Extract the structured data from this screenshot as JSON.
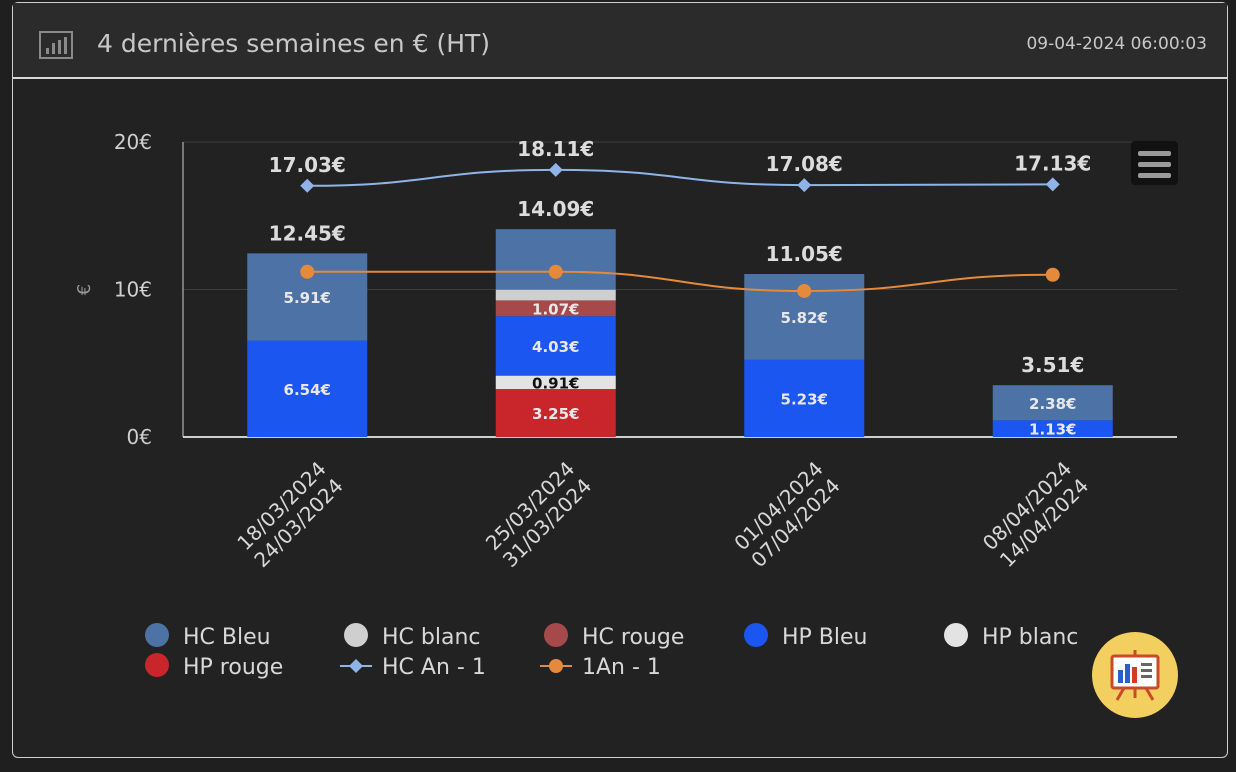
{
  "header": {
    "title": "4 dernières semaines en € (HT)",
    "timestamp": "09-04-2024 06:00:03",
    "icon": "bar-chart-icon"
  },
  "menu": {
    "icon": "hamburger-menu-icon"
  },
  "fab": {
    "icon": "presentation-board-icon"
  },
  "colors": {
    "background": "#222222",
    "header_bg": "#2b2b2b",
    "hc_bleu": "#4d72a6",
    "hc_blanc": "#cfcfcf",
    "hc_rouge": "#a5494a",
    "hp_bleu": "#1c56f0",
    "hp_blanc": "#e3e3e3",
    "hp_rouge": "#c8262a",
    "hc_an1": "#8fb4e8",
    "an1": "#e58a3a",
    "fab_bg": "#f3cf5f"
  },
  "chart_data": {
    "type": "bar",
    "stacked": true,
    "title": "",
    "xlabel": "",
    "ylabel": "€",
    "ylim": [
      0,
      20
    ],
    "yticks": [
      "0€",
      "10€",
      "20€"
    ],
    "ytick_values": [
      0,
      10,
      20
    ],
    "categories": [
      [
        "18/03/2024",
        "24/03/2024"
      ],
      [
        "25/03/2024",
        "31/03/2024"
      ],
      [
        "01/04/2024",
        "07/04/2024"
      ],
      [
        "08/04/2024",
        "14/04/2024"
      ]
    ],
    "totals": [
      12.45,
      14.09,
      11.05,
      3.51
    ],
    "total_labels": [
      "12.45€",
      "14.09€",
      "11.05€",
      "3.51€"
    ],
    "series": [
      {
        "name": "HP rouge",
        "color": "#c8262a",
        "values": [
          0,
          3.25,
          0,
          0
        ],
        "labels": [
          "",
          "3.25€",
          "",
          ""
        ],
        "label_color": "#e8e8e8"
      },
      {
        "name": "HP blanc",
        "color": "#e3e3e3",
        "values": [
          0,
          0.91,
          0,
          0
        ],
        "labels": [
          "",
          "0.91€",
          "",
          ""
        ],
        "label_color": "#111111"
      },
      {
        "name": "HP Bleu",
        "color": "#1c56f0",
        "values": [
          6.54,
          4.03,
          5.23,
          1.13
        ],
        "labels": [
          "6.54€",
          "4.03€",
          "5.23€",
          "1.13€"
        ],
        "label_color": "#e8e8e8"
      },
      {
        "name": "HC rouge",
        "color": "#a5494a",
        "values": [
          0,
          1.07,
          0,
          0
        ],
        "labels": [
          "",
          "1.07€",
          "",
          ""
        ],
        "label_color": "#e8e8e8"
      },
      {
        "name": "HC blanc",
        "color": "#cfcfcf",
        "values": [
          0,
          0.73,
          0,
          0
        ],
        "labels": [
          "",
          "",
          "",
          ""
        ],
        "label_color": "#111111"
      },
      {
        "name": "HC Bleu",
        "color": "#4d72a6",
        "values": [
          5.91,
          4.1,
          5.82,
          2.38
        ],
        "labels": [
          "5.91€",
          "",
          "5.82€",
          "2.38€"
        ],
        "label_color": "#e8e8e8"
      }
    ],
    "lines": [
      {
        "name": "HC An - 1",
        "color": "#8fb4e8",
        "marker": "diamond",
        "values": [
          17.03,
          18.11,
          17.08,
          17.13
        ],
        "labels": [
          "17.03€",
          "18.11€",
          "17.08€",
          "17.13€"
        ]
      },
      {
        "name": "1An - 1",
        "color": "#e58a3a",
        "marker": "circle",
        "values": [
          11.2,
          11.2,
          9.9,
          11.0
        ],
        "labels": [
          "",
          "",
          "",
          ""
        ]
      }
    ],
    "legend": {
      "placement": "bottom",
      "items": [
        {
          "name": "HC Bleu",
          "color": "#4d72a6",
          "kind": "dot"
        },
        {
          "name": "HC blanc",
          "color": "#cfcfcf",
          "kind": "dot"
        },
        {
          "name": "HC rouge",
          "color": "#a5494a",
          "kind": "dot"
        },
        {
          "name": "HP Bleu",
          "color": "#1c56f0",
          "kind": "dot"
        },
        {
          "name": "HP blanc",
          "color": "#e3e3e3",
          "kind": "dot"
        },
        {
          "name": "HP rouge",
          "color": "#c8262a",
          "kind": "dot"
        },
        {
          "name": "HC An - 1",
          "color": "#8fb4e8",
          "kind": "line-diamond"
        },
        {
          "name": "1An - 1",
          "color": "#e58a3a",
          "kind": "line-circle"
        }
      ]
    }
  }
}
